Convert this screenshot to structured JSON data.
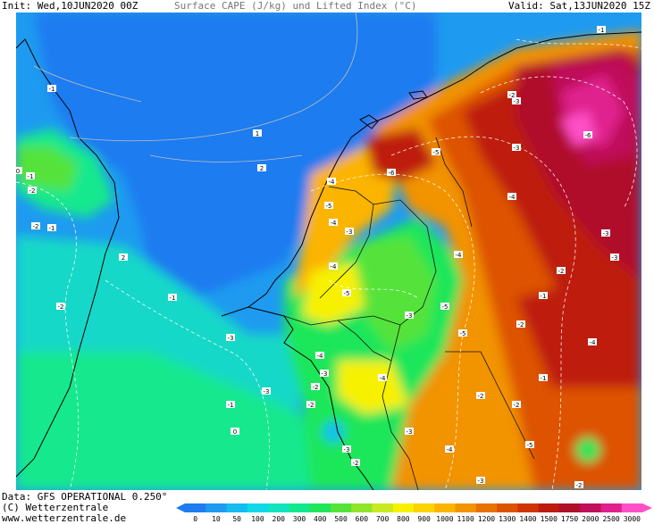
{
  "header": {
    "init_label": "Init: Wed,10JUN2020 00Z",
    "title": "Surface CAPE (J/kg) und Lifted Index (°C)",
    "valid_label": "Valid: Sat,13JUN2020 15Z"
  },
  "footer": {
    "data_source": "Data: GFS OPERATIONAL 0.250°",
    "copyright": "(C) Wetterzentrale",
    "website": "www.wetterzentrale.de"
  },
  "colorbar": {
    "ticks": [
      "0",
      "10",
      "50",
      "100",
      "200",
      "300",
      "400",
      "500",
      "600",
      "700",
      "800",
      "900",
      "1000",
      "1100",
      "1200",
      "1300",
      "1400",
      "1500",
      "1750",
      "2000",
      "2500",
      "3000"
    ],
    "colors": [
      "#1e7bf0",
      "#1e9bf0",
      "#13bdf0",
      "#10d8e8",
      "#11e4c0",
      "#12e88e",
      "#1ee65a",
      "#55e33a",
      "#8fe52a",
      "#c7ea20",
      "#f7f100",
      "#fcd300",
      "#fbb400",
      "#f29300",
      "#e87200",
      "#dd5200",
      "#cf3400",
      "#be1a10",
      "#b0102a",
      "#c0105a",
      "#e0208e",
      "#ff4fc8"
    ]
  },
  "lifted_index_labels": [
    {
      "text": "-1"
    },
    {
      "text": "-2"
    },
    {
      "text": "-2"
    },
    {
      "text": "-1"
    },
    {
      "text": "0"
    },
    {
      "text": "-1"
    },
    {
      "text": "1"
    },
    {
      "text": "2"
    },
    {
      "text": "2"
    },
    {
      "text": "-2"
    },
    {
      "text": "-1"
    },
    {
      "text": "-3"
    },
    {
      "text": "-4"
    },
    {
      "text": "-5"
    },
    {
      "text": "-4"
    },
    {
      "text": "-3"
    },
    {
      "text": "-4"
    },
    {
      "text": "-5"
    },
    {
      "text": "-6"
    },
    {
      "text": "-5"
    },
    {
      "text": "-4"
    },
    {
      "text": "-3"
    },
    {
      "text": "-3"
    },
    {
      "text": "-2"
    },
    {
      "text": "-1"
    },
    {
      "text": "-3"
    },
    {
      "text": "-3"
    },
    {
      "text": "-2"
    },
    {
      "text": "-1"
    },
    {
      "text": "-2"
    },
    {
      "text": "-4"
    },
    {
      "text": "-6"
    },
    {
      "text": "-4"
    },
    {
      "text": "-5"
    },
    {
      "text": "-5"
    },
    {
      "text": "-3"
    },
    {
      "text": "-4"
    },
    {
      "text": "-3"
    },
    {
      "text": "-2"
    },
    {
      "text": "-1"
    },
    {
      "text": "-2"
    },
    {
      "text": "-4"
    },
    {
      "text": "-3"
    },
    {
      "text": "-2"
    },
    {
      "text": "-3"
    },
    {
      "text": "-1"
    },
    {
      "text": "0"
    },
    {
      "text": "-2"
    },
    {
      "text": "-5"
    },
    {
      "text": "-4"
    },
    {
      "text": "-3"
    },
    {
      "text": "-2"
    },
    {
      "text": "-3"
    },
    {
      "text": "-2"
    }
  ]
}
